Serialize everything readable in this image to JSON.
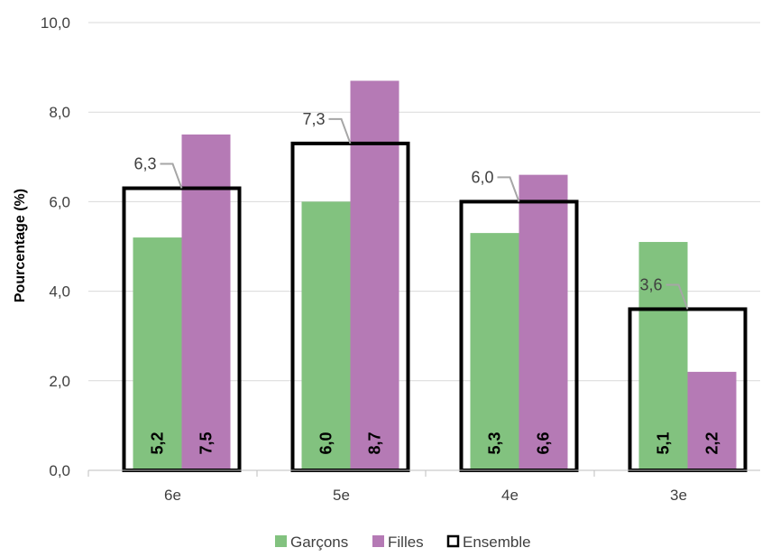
{
  "chart_data": {
    "type": "bar",
    "categories": [
      "6e",
      "5e",
      "4e",
      "3e"
    ],
    "series": [
      {
        "name": "Garçons",
        "values": [
          5.2,
          6.0,
          5.3,
          5.1
        ],
        "labels": [
          "5,2",
          "6,0",
          "5,3",
          "5,1"
        ],
        "color": "#82C27F"
      },
      {
        "name": "Filles",
        "values": [
          7.5,
          8.7,
          6.6,
          2.2
        ],
        "labels": [
          "7,5",
          "8,7",
          "6,6",
          "2,2"
        ],
        "color": "#B57AB5"
      },
      {
        "name": "Ensemble",
        "values": [
          6.3,
          7.3,
          6.0,
          3.6
        ],
        "labels": [
          "6,3",
          "7,3",
          "6,0",
          "3,6"
        ],
        "color": "#000000"
      }
    ],
    "ylabel": "Pourcentage (%)",
    "ylim": [
      0,
      10
    ],
    "yticks": [
      "0,0",
      "2,0",
      "4,0",
      "6,0",
      "8,0",
      "10,0"
    ],
    "grid": true,
    "legend_position": "bottom"
  }
}
